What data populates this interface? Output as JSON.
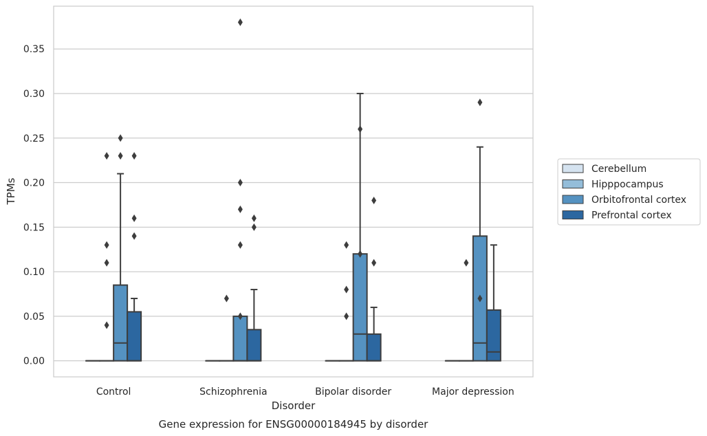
{
  "chart_data": {
    "type": "box",
    "title": "",
    "caption": "Gene expression for ENSG00000184945 by disorder",
    "xlabel": "Disorder",
    "ylabel": "TPMs",
    "ylim": [
      -0.018,
      0.398
    ],
    "yticks": [
      0.0,
      0.05,
      0.1,
      0.15,
      0.2,
      0.25,
      0.3,
      0.35
    ],
    "ytick_labels": [
      "0.00",
      "0.05",
      "0.10",
      "0.15",
      "0.20",
      "0.25",
      "0.30",
      "0.35"
    ],
    "grid": true,
    "legend_position": "right",
    "categories": [
      "Control",
      "Schizophrenia",
      "Bipolar disorder",
      "Major depression"
    ],
    "series": [
      {
        "name": "Cerebellum",
        "color": "#d5e3f0",
        "boxes": [
          {
            "whislo": 0,
            "q1": 0,
            "med": 0,
            "q3": 0,
            "whishi": 0,
            "fliers": []
          },
          {
            "whislo": 0,
            "q1": 0,
            "med": 0,
            "q3": 0,
            "whishi": 0,
            "fliers": []
          },
          {
            "whislo": 0,
            "q1": 0,
            "med": 0,
            "q3": 0,
            "whishi": 0,
            "fliers": []
          },
          {
            "whislo": 0,
            "q1": 0,
            "med": 0,
            "q3": 0,
            "whishi": 0,
            "fliers": []
          }
        ]
      },
      {
        "name": "Hipppocampus",
        "color": "#94bdd9",
        "boxes": [
          {
            "whislo": 0,
            "q1": 0,
            "med": 0,
            "q3": 0,
            "whishi": 0,
            "fliers": [
              0.04,
              0.11,
              0.13,
              0.23
            ]
          },
          {
            "whislo": 0,
            "q1": 0,
            "med": 0,
            "q3": 0,
            "whishi": 0,
            "fliers": [
              0.07
            ]
          },
          {
            "whislo": 0,
            "q1": 0,
            "med": 0,
            "q3": 0,
            "whishi": 0,
            "fliers": [
              0.05,
              0.08,
              0.13
            ]
          },
          {
            "whislo": 0,
            "q1": 0,
            "med": 0,
            "q3": 0,
            "whishi": 0,
            "fliers": [
              0.11
            ]
          }
        ]
      },
      {
        "name": "Orbitofrontal cortex",
        "color": "#5592c1",
        "boxes": [
          {
            "whislo": 0,
            "q1": 0,
            "med": 0.02,
            "q3": 0.085,
            "whishi": 0.21,
            "fliers": [
              0.23,
              0.25
            ]
          },
          {
            "whislo": 0,
            "q1": 0,
            "med": 0,
            "q3": 0.05,
            "whishi": 0.05,
            "fliers": [
              0.05,
              0.13,
              0.17,
              0.2,
              0.38
            ]
          },
          {
            "whislo": 0,
            "q1": 0,
            "med": 0.03,
            "q3": 0.12,
            "whishi": 0.3,
            "fliers": [
              0.12,
              0.26
            ]
          },
          {
            "whislo": 0,
            "q1": 0,
            "med": 0.02,
            "q3": 0.14,
            "whishi": 0.24,
            "fliers": [
              0.07,
              0.29
            ]
          }
        ]
      },
      {
        "name": "Prefrontal cortex",
        "color": "#2c67a0",
        "boxes": [
          {
            "whislo": 0,
            "q1": 0,
            "med": 0,
            "q3": 0.055,
            "whishi": 0.07,
            "fliers": [
              0.14,
              0.16,
              0.23
            ]
          },
          {
            "whislo": 0,
            "q1": 0,
            "med": 0,
            "q3": 0.035,
            "whishi": 0.08,
            "fliers": [
              0.15,
              0.16
            ]
          },
          {
            "whislo": 0,
            "q1": 0,
            "med": 0,
            "q3": 0.03,
            "whishi": 0.06,
            "fliers": [
              0.11,
              0.18
            ]
          },
          {
            "whislo": 0,
            "q1": 0,
            "med": 0.01,
            "q3": 0.057,
            "whishi": 0.13,
            "fliers": []
          }
        ]
      }
    ]
  }
}
